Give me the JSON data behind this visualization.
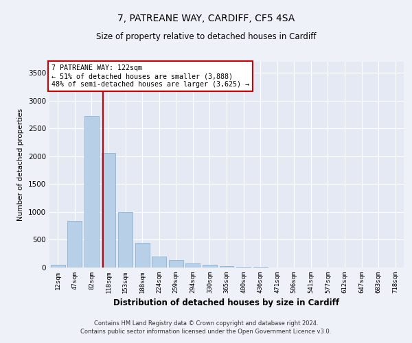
{
  "title": "7, PATREANE WAY, CARDIFF, CF5 4SA",
  "subtitle": "Size of property relative to detached houses in Cardiff",
  "xlabel": "Distribution of detached houses by size in Cardiff",
  "ylabel": "Number of detached properties",
  "categories": [
    "12sqm",
    "47sqm",
    "82sqm",
    "118sqm",
    "153sqm",
    "188sqm",
    "224sqm",
    "259sqm",
    "294sqm",
    "330sqm",
    "365sqm",
    "400sqm",
    "436sqm",
    "471sqm",
    "506sqm",
    "541sqm",
    "577sqm",
    "612sqm",
    "647sqm",
    "683sqm",
    "718sqm"
  ],
  "values": [
    55,
    840,
    2720,
    2060,
    1000,
    450,
    200,
    130,
    70,
    55,
    30,
    10,
    10,
    5,
    5,
    2,
    2,
    1,
    1,
    1,
    1
  ],
  "bar_color": "#b8cfe8",
  "bar_edge_color": "#7aaad0",
  "annotation_text_line1": "7 PATREANE WAY: 122sqm",
  "annotation_text_line2": "← 51% of detached houses are smaller (3,888)",
  "annotation_text_line3": "48% of semi-detached houses are larger (3,625) →",
  "annotation_box_color": "#ffffff",
  "annotation_border_color": "#cc0000",
  "red_line_x": 2.68,
  "ylim": [
    0,
    3700
  ],
  "yticks": [
    0,
    500,
    1000,
    1500,
    2000,
    2500,
    3000,
    3500
  ],
  "bg_color": "#eef1f8",
  "axes_bg_color": "#e4e9f4",
  "grid_color": "#ffffff",
  "footer_line1": "Contains HM Land Registry data © Crown copyright and database right 2024.",
  "footer_line2": "Contains public sector information licensed under the Open Government Licence v3.0."
}
